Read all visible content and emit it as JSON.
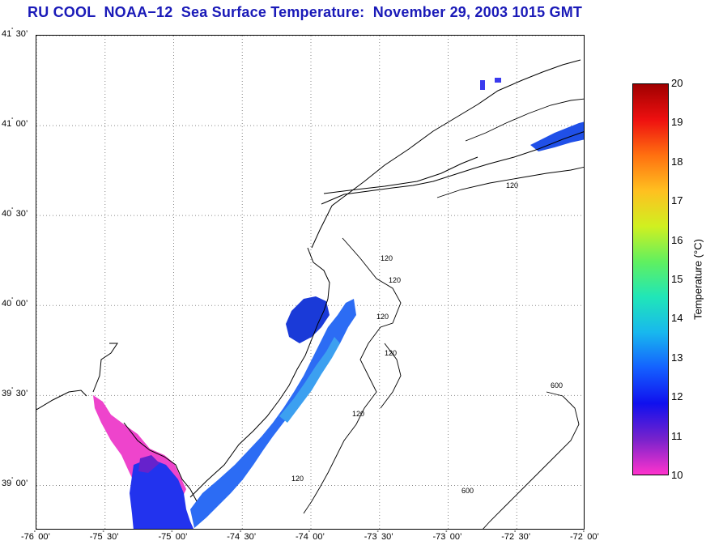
{
  "title": "RU COOL  NOAA−12  Sea Surface Temperature:  November 29, 2003 1015 GMT",
  "map": {
    "lat_labels": [
      {
        "deg": "41",
        "min": "30’",
        "lat": 41.5
      },
      {
        "deg": "41",
        "min": "00’",
        "lat": 41.0
      },
      {
        "deg": "40",
        "min": "30’",
        "lat": 40.5
      },
      {
        "deg": "40",
        "min": "00’",
        "lat": 40.0
      },
      {
        "deg": "39",
        "min": "30’",
        "lat": 39.5
      },
      {
        "deg": "39",
        "min": "00’",
        "lat": 39.0
      }
    ],
    "lon_labels": [
      {
        "deg": "-76",
        "min": "00’",
        "lon": -76.0
      },
      {
        "deg": "-75",
        "min": "30’",
        "lon": -75.5
      },
      {
        "deg": "-75",
        "min": "00’",
        "lon": -75.0
      },
      {
        "deg": "-74",
        "min": "30’",
        "lon": -74.5
      },
      {
        "deg": "-74",
        "min": "00’",
        "lon": -74.0
      },
      {
        "deg": "-73",
        "min": "30’",
        "lon": -73.5
      },
      {
        "deg": "-73",
        "min": "00’",
        "lon": -73.0
      },
      {
        "deg": "-72",
        "min": "30’",
        "lon": -72.5
      },
      {
        "deg": "-72",
        "min": "00’",
        "lon": -72.0
      }
    ],
    "contour_labels": [
      "120",
      "120",
      "120",
      "120",
      "120",
      "120",
      "120",
      "600",
      "600"
    ]
  },
  "colorbar": {
    "ticks": [
      "20",
      "19",
      "18",
      "17",
      "16",
      "15",
      "14",
      "13",
      "12",
      "11",
      "10"
    ],
    "label": "Temperature (°C)",
    "colors": [
      "#ff33cc",
      "#7722cc",
      "#1010ee",
      "#1460ff",
      "#18b8ee",
      "#20e6b8",
      "#60f060",
      "#d0f020",
      "#ffc020",
      "#ff7010",
      "#ee1010",
      "#a00000"
    ]
  }
}
